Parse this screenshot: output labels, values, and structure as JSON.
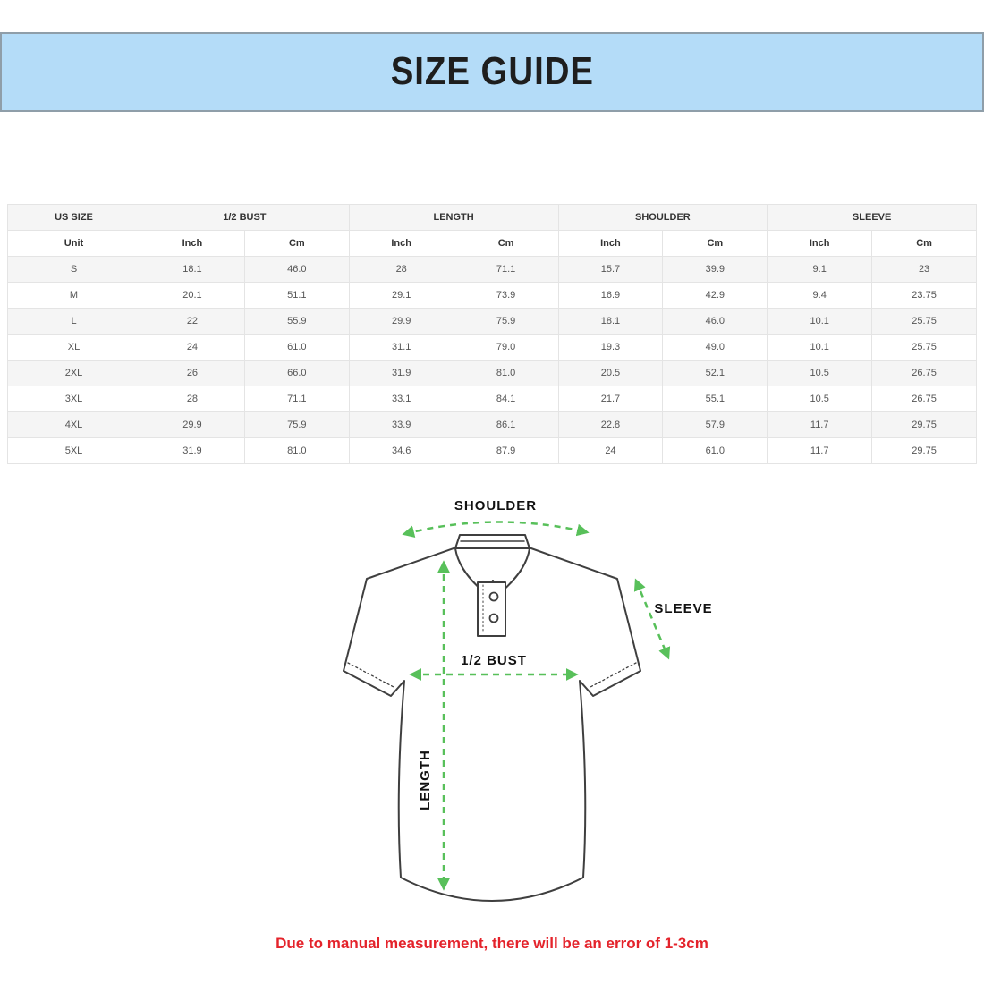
{
  "banner": {
    "title": "SIZE GUIDE",
    "bg_color": "#b4dcf8",
    "border_color": "#8f9ea9"
  },
  "size_table": {
    "column_groups": [
      {
        "label": "US SIZE",
        "span": 1
      },
      {
        "label": "1/2 BUST",
        "span": 2
      },
      {
        "label": "LENGTH",
        "span": 2
      },
      {
        "label": "SHOULDER",
        "span": 2
      },
      {
        "label": "SLEEVE",
        "span": 2
      }
    ],
    "unit_headers": [
      "Unit",
      "Inch",
      "Cm",
      "Inch",
      "Cm",
      "Inch",
      "Cm",
      "Inch",
      "Cm"
    ],
    "rows": [
      [
        "S",
        "18.1",
        "46.0",
        "28",
        "71.1",
        "15.7",
        "39.9",
        "9.1",
        "23"
      ],
      [
        "M",
        "20.1",
        "51.1",
        "29.1",
        "73.9",
        "16.9",
        "42.9",
        "9.4",
        "23.75"
      ],
      [
        "L",
        "22",
        "55.9",
        "29.9",
        "75.9",
        "18.1",
        "46.0",
        "10.1",
        "25.75"
      ],
      [
        "XL",
        "24",
        "61.0",
        "31.1",
        "79.0",
        "19.3",
        "49.0",
        "10.1",
        "25.75"
      ],
      [
        "2XL",
        "26",
        "66.0",
        "31.9",
        "81.0",
        "20.5",
        "52.1",
        "10.5",
        "26.75"
      ],
      [
        "3XL",
        "28",
        "71.1",
        "33.1",
        "84.1",
        "21.7",
        "55.1",
        "10.5",
        "26.75"
      ],
      [
        "4XL",
        "29.9",
        "75.9",
        "33.9",
        "86.1",
        "22.8",
        "57.9",
        "11.7",
        "29.75"
      ],
      [
        "5XL",
        "31.9",
        "81.0",
        "34.6",
        "87.9",
        "24",
        "61.0",
        "11.7",
        "29.75"
      ]
    ]
  },
  "diagram": {
    "shoulder_label": "SHOULDER",
    "sleeve_label": "SLEEVE",
    "bust_label": "1/2 BUST",
    "length_label": "LENGTH",
    "arrow_color": "#58c05a",
    "outline_color": "#3f3f3f"
  },
  "footer": {
    "note": "Due to manual measurement, there will be an error of 1-3cm",
    "color": "#e4232b"
  }
}
